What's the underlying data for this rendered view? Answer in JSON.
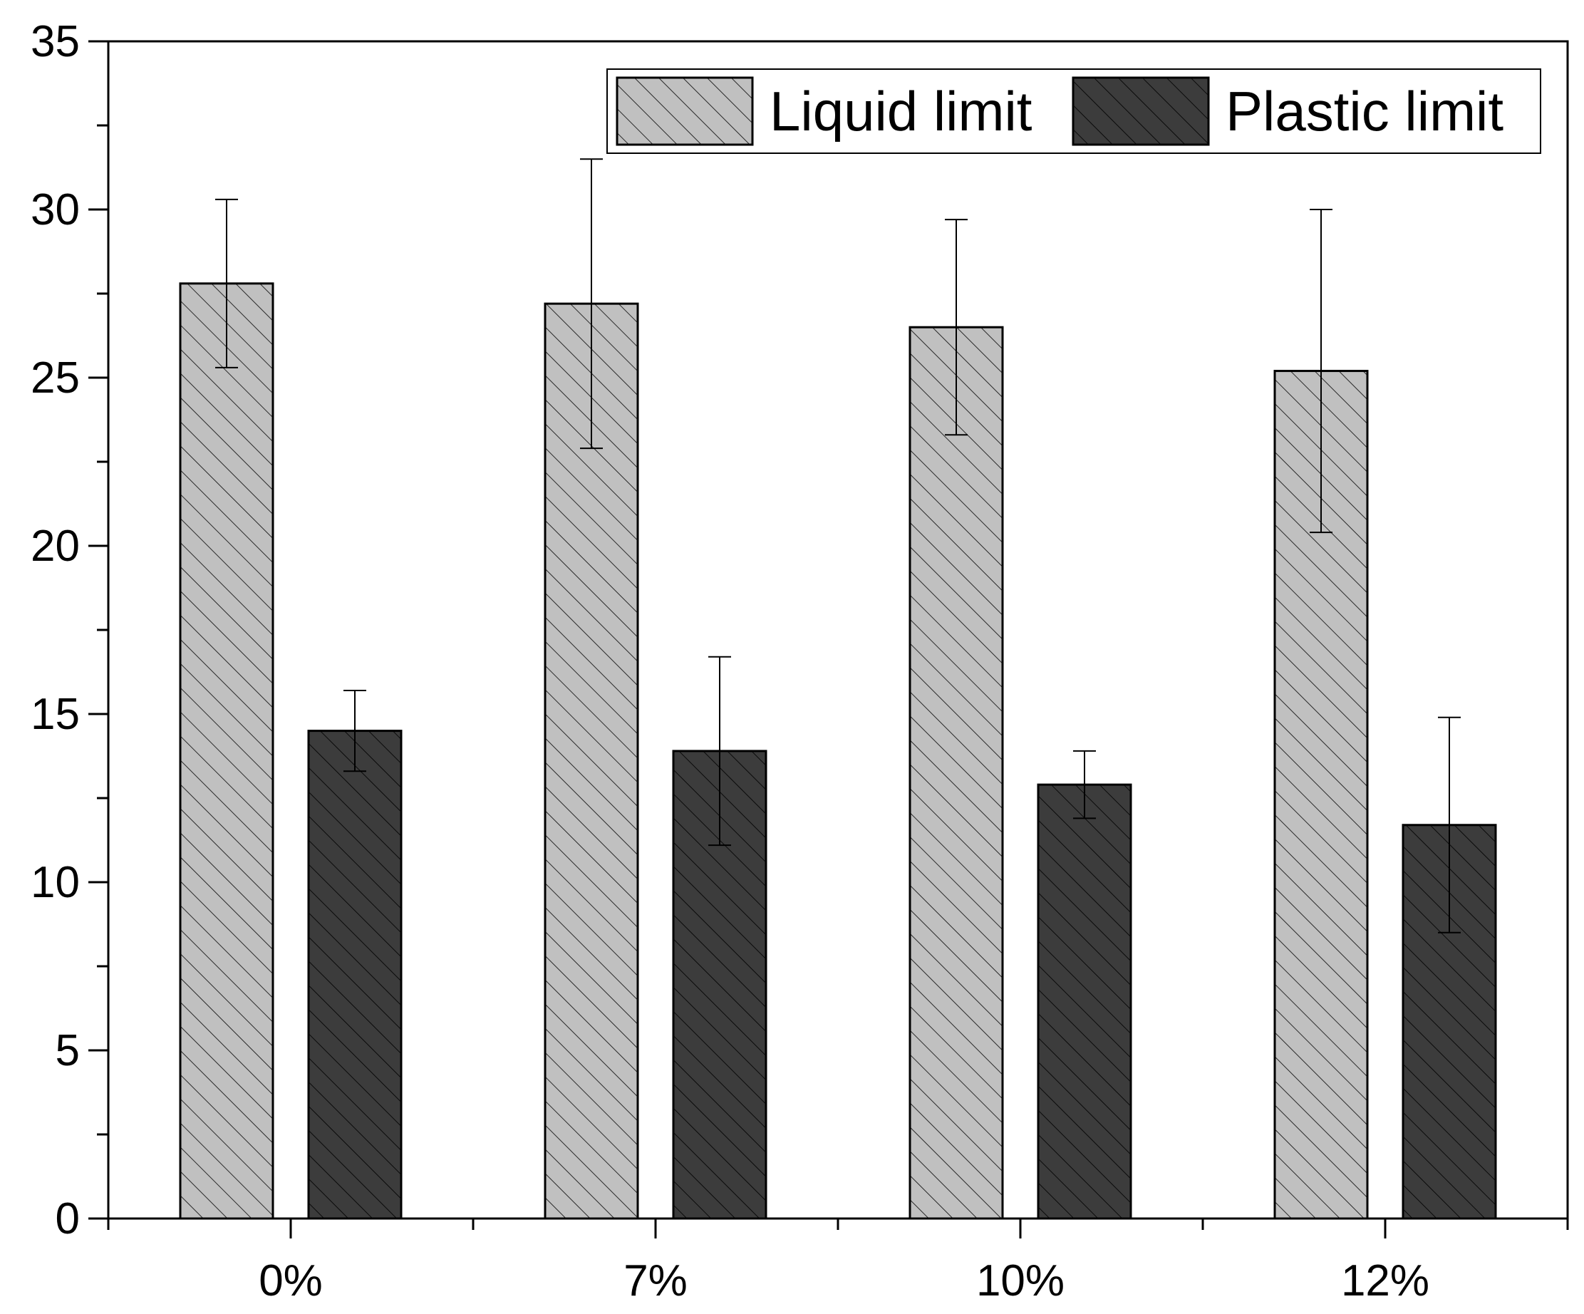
{
  "chart_data": {
    "type": "bar",
    "title": "",
    "xlabel": "",
    "ylabel": "",
    "categories": [
      "0%",
      "7%",
      "10%",
      "12%"
    ],
    "ylim": [
      0,
      35
    ],
    "yticks": [
      0,
      5,
      10,
      15,
      20,
      25,
      30,
      35
    ],
    "grid": false,
    "legend_position": "top-right",
    "series": [
      {
        "name": "Liquid limit",
        "values": [
          27.8,
          27.2,
          26.5,
          25.2
        ],
        "error_low": [
          25.3,
          22.9,
          23.3,
          20.4
        ],
        "error_high": [
          30.3,
          31.5,
          29.7,
          30.0
        ],
        "color": "#c0c0c0",
        "pattern": "diagonal-hatch"
      },
      {
        "name": "Plastic limit",
        "values": [
          14.5,
          13.9,
          12.9,
          11.7
        ],
        "error_low": [
          13.3,
          11.1,
          11.9,
          8.5
        ],
        "error_high": [
          15.7,
          16.7,
          13.9,
          14.9
        ],
        "color": "#3a3a3a",
        "pattern": "diagonal-hatch"
      }
    ]
  }
}
